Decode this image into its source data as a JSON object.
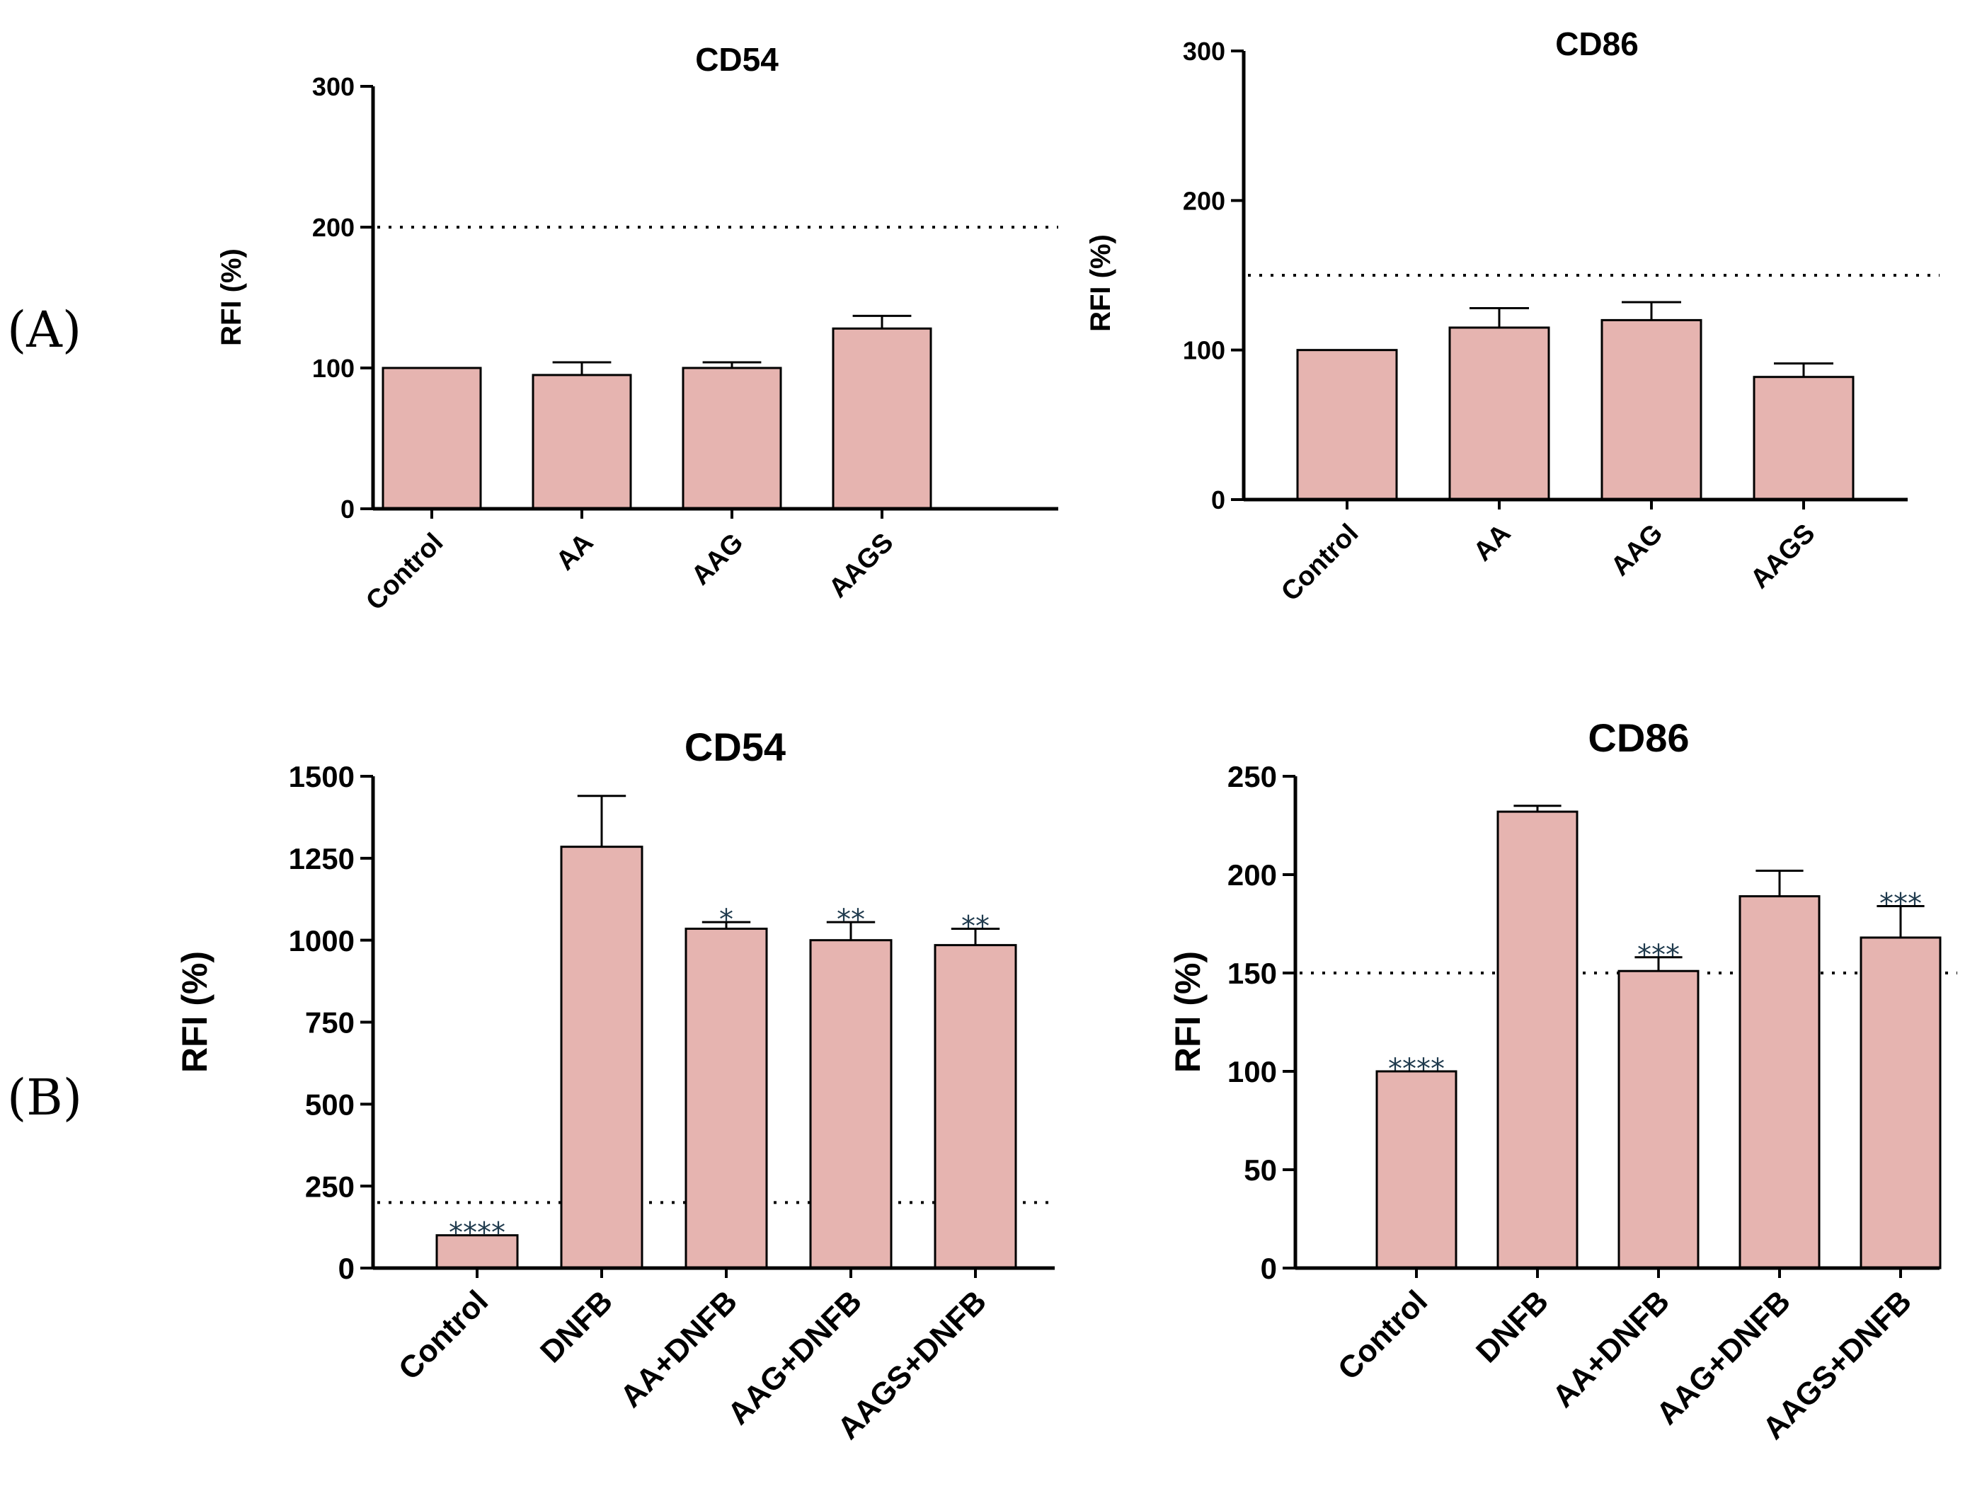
{
  "panels": [
    {
      "id": "A",
      "label": "(A)"
    },
    {
      "id": "B",
      "label": "(B)"
    }
  ],
  "style": {
    "bar_fill": "#e6b4b0",
    "bar_stroke": "#000000",
    "sig_color": "#1f3a4d"
  },
  "chart_data": [
    {
      "type": "bar",
      "panel": "A",
      "title": "CD54",
      "ylabel": "RFI (%)",
      "xlabel": "",
      "categories": [
        "Control",
        "AA",
        "AAG",
        "AAGS"
      ],
      "values": [
        100,
        95,
        100,
        128
      ],
      "errors": [
        0,
        9,
        4,
        9
      ],
      "annotations": [
        "",
        "",
        "",
        ""
      ],
      "ylim": [
        0,
        300
      ],
      "yticks": [
        0,
        100,
        200,
        300
      ],
      "threshold": 200,
      "grid": false,
      "legend": "none"
    },
    {
      "type": "bar",
      "panel": "A",
      "title": "CD86",
      "ylabel": "RFI (%)",
      "xlabel": "",
      "categories": [
        "Control",
        "AA",
        "AAG",
        "AAGS"
      ],
      "values": [
        100,
        115,
        120,
        82
      ],
      "errors": [
        0,
        13,
        12,
        9
      ],
      "annotations": [
        "",
        "",
        "",
        ""
      ],
      "ylim": [
        0,
        300
      ],
      "yticks": [
        0,
        100,
        200,
        300
      ],
      "threshold": 150,
      "grid": false,
      "legend": "none"
    },
    {
      "type": "bar",
      "panel": "B",
      "title": "CD54",
      "ylabel": "RFI (%)",
      "xlabel": "",
      "categories": [
        "Control",
        "DNFB",
        "AA+DNFB",
        "AAG+DNFB",
        "AAGS+DNFB"
      ],
      "values": [
        100,
        1285,
        1035,
        1000,
        985
      ],
      "errors": [
        0,
        155,
        20,
        55,
        50
      ],
      "annotations": [
        "****",
        "",
        "*",
        "**",
        "**"
      ],
      "ylim": [
        0,
        1500
      ],
      "yticks": [
        0,
        250,
        500,
        750,
        1000,
        1250,
        1500
      ],
      "threshold": 200,
      "grid": false,
      "legend": "none"
    },
    {
      "type": "bar",
      "panel": "B",
      "title": "CD86",
      "ylabel": "RFI (%)",
      "xlabel": "",
      "categories": [
        "Control",
        "DNFB",
        "AA+DNFB",
        "AAG+DNFB",
        "AAGS+DNFB"
      ],
      "values": [
        100,
        232,
        151,
        189,
        168
      ],
      "errors": [
        0,
        3,
        7,
        13,
        16
      ],
      "annotations": [
        "****",
        "",
        "***",
        "",
        "***"
      ],
      "ylim": [
        0,
        250
      ],
      "yticks": [
        0,
        50,
        100,
        150,
        200,
        250
      ],
      "threshold": 150,
      "grid": false,
      "legend": "none"
    }
  ]
}
